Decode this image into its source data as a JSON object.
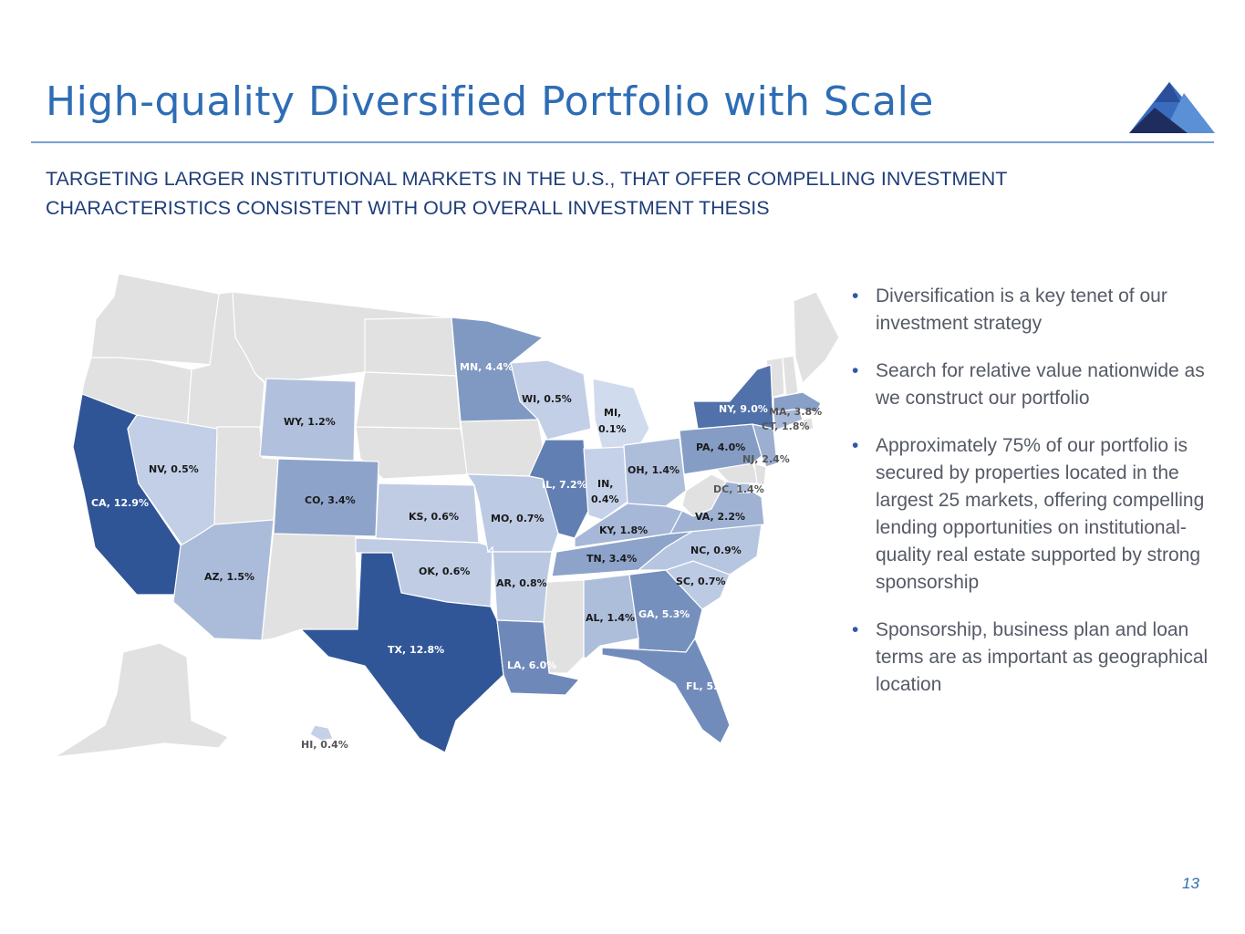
{
  "header": {
    "title": "High-quality Diversified Portfolio with Scale",
    "subtitle": "TARGETING LARGER INSTITUTIONAL MARKETS IN THE U.S., THAT OFFER COMPELLING INVESTMENT CHARACTERISTICS CONSISTENT WITH OUR OVERALL INVESTMENT THESIS"
  },
  "colors": {
    "title": "#2e6db4",
    "rule": "#7a9fd3",
    "no_exposure": "#e1e1e1",
    "exposure_darkest": "#2f5597",
    "exposure_lightest": "#dae3f3"
  },
  "map": {
    "states": [
      {
        "code": "CA",
        "label": "CA, 12.9%",
        "pct": 12.9
      },
      {
        "code": "TX",
        "label": "TX, 12.8%",
        "pct": 12.8
      },
      {
        "code": "NY",
        "label": "NY, 9.0%",
        "pct": 9.0
      },
      {
        "code": "IL",
        "label": "IL, 7.2%",
        "pct": 7.2
      },
      {
        "code": "LA",
        "label": "LA, 6.0%",
        "pct": 6.0
      },
      {
        "code": "FL",
        "label": "FL, 5.7%",
        "pct": 5.7
      },
      {
        "code": "GA",
        "label": "GA, 5.3%",
        "pct": 5.3
      },
      {
        "code": "MN",
        "label": "MN, 4.4%",
        "pct": 4.4
      },
      {
        "code": "PA",
        "label": "PA, 4.0%",
        "pct": 4.0
      },
      {
        "code": "MA",
        "label": "MA, 3.8%",
        "pct": 3.8
      },
      {
        "code": "CO",
        "label": "CO, 3.4%",
        "pct": 3.4
      },
      {
        "code": "TN",
        "label": "TN, 3.4%",
        "pct": 3.4
      },
      {
        "code": "NJ",
        "label": "NJ, 2.4%",
        "pct": 2.4
      },
      {
        "code": "VA",
        "label": "VA, 2.2%",
        "pct": 2.2
      },
      {
        "code": "CT",
        "label": "CT, 1.8%",
        "pct": 1.8
      },
      {
        "code": "KY",
        "label": "KY, 1.8%",
        "pct": 1.8
      },
      {
        "code": "AZ",
        "label": "AZ, 1.5%",
        "pct": 1.5
      },
      {
        "code": "OH",
        "label": "OH, 1.4%",
        "pct": 1.4
      },
      {
        "code": "AL",
        "label": "AL, 1.4%",
        "pct": 1.4
      },
      {
        "code": "DC",
        "label": "DC, 1.4%",
        "pct": 1.4
      },
      {
        "code": "WY",
        "label": "WY, 1.2%",
        "pct": 1.2
      },
      {
        "code": "NC",
        "label": "NC, 0.9%",
        "pct": 0.9
      },
      {
        "code": "AR",
        "label": "AR, 0.8%",
        "pct": 0.8
      },
      {
        "code": "MO",
        "label": "MO, 0.7%",
        "pct": 0.7
      },
      {
        "code": "SC",
        "label": "SC, 0.7%",
        "pct": 0.7
      },
      {
        "code": "KS",
        "label": "KS, 0.6%",
        "pct": 0.6
      },
      {
        "code": "OK",
        "label": "OK, 0.6%",
        "pct": 0.6
      },
      {
        "code": "NV",
        "label": "NV, 0.5%",
        "pct": 0.5
      },
      {
        "code": "WI",
        "label": "WI, 0.5%",
        "pct": 0.5
      },
      {
        "code": "IN",
        "label": "IN,",
        "label2": "0.4%",
        "pct": 0.4
      },
      {
        "code": "HI",
        "label": "HI, 0.4%",
        "pct": 0.4
      },
      {
        "code": "MI",
        "label": "MI,",
        "label2": "0.1%",
        "pct": 0.1
      }
    ]
  },
  "bullets": [
    "Diversification is a key tenet of our investment strategy",
    "Search for relative value nationwide as we construct our portfolio",
    "Approximately 75% of our portfolio is secured by properties located in the largest 25 markets, offering compelling lending opportunities on institutional-quality real estate supported by strong sponsorship",
    "Sponsorship, business plan and loan terms are as important as geographical location"
  ],
  "footer": {
    "page_number": "13"
  }
}
